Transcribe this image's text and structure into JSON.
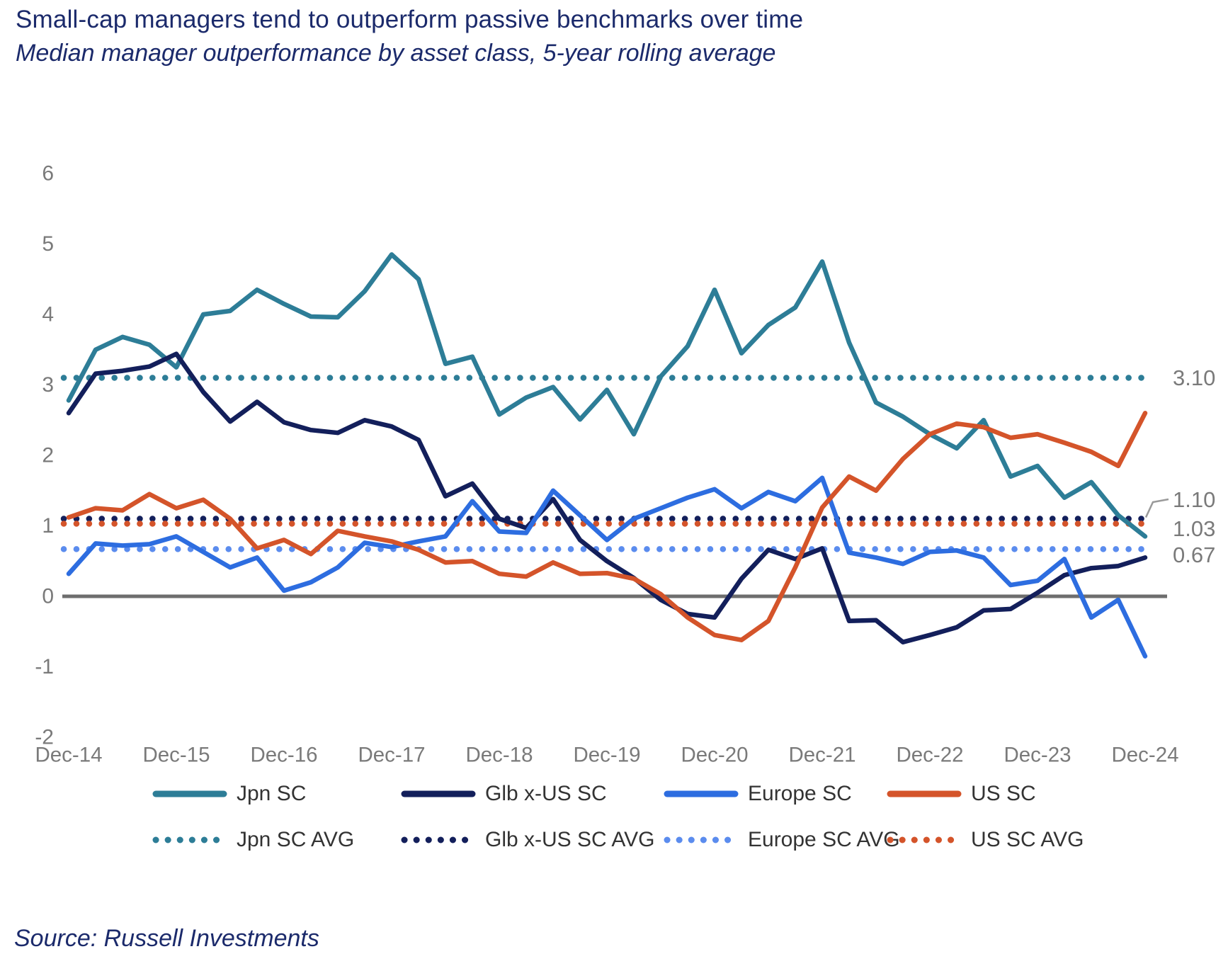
{
  "header": {
    "title": "Small-cap managers tend to outperform passive benchmarks over time",
    "subtitle": "Median manager outperformance by asset class, 5-year rolling average"
  },
  "footer": {
    "source": "Source: Russell Investments"
  },
  "chart_data": {
    "type": "line",
    "title": "Median manager outperformance by asset class, 5-year rolling average",
    "x_frequency": "quarterly",
    "x_tick_labels": [
      "Dec-14",
      "Dec-15",
      "Dec-16",
      "Dec-17",
      "Dec-18",
      "Dec-19",
      "Dec-20",
      "Dec-21",
      "Dec-22",
      "Dec-23",
      "Dec-24"
    ],
    "y_ticks": [
      6,
      5,
      4,
      3,
      2,
      1,
      0,
      -1,
      -2
    ],
    "ylim": [
      -2,
      6
    ],
    "grid": "none",
    "zero_line_color": "#6e6e6e",
    "axis_text_color": "#7a7a7a",
    "series": [
      {
        "name": "Jpn SC",
        "color": "#2d7d97",
        "values": [
          2.78,
          3.5,
          3.68,
          3.57,
          3.25,
          4.0,
          4.05,
          4.35,
          4.15,
          3.97,
          3.96,
          4.33,
          4.85,
          4.5,
          3.3,
          3.4,
          2.58,
          2.82,
          2.97,
          2.51,
          2.93,
          2.3,
          3.12,
          3.55,
          4.35,
          3.45,
          3.85,
          4.1,
          4.75,
          3.6,
          2.75,
          2.55,
          2.3,
          2.1,
          2.5,
          1.7,
          1.85,
          1.4,
          1.62,
          1.15,
          0.85
        ]
      },
      {
        "name": "Glb x-US SC",
        "color": "#131f5b",
        "values": [
          2.6,
          3.16,
          3.2,
          3.26,
          3.44,
          2.9,
          2.48,
          2.76,
          2.47,
          2.36,
          2.32,
          2.5,
          2.41,
          2.22,
          1.42,
          1.6,
          1.1,
          0.97,
          1.38,
          0.8,
          0.5,
          0.26,
          -0.05,
          -0.25,
          -0.3,
          0.25,
          0.66,
          0.53,
          0.68,
          -0.35,
          -0.34,
          -0.65,
          -0.55,
          -0.44,
          -0.2,
          -0.18,
          0.05,
          0.3,
          0.4,
          0.43,
          0.55
        ]
      },
      {
        "name": "Europe SC",
        "color": "#2d6de0",
        "values": [
          0.32,
          0.75,
          0.72,
          0.74,
          0.85,
          0.63,
          0.41,
          0.55,
          0.08,
          0.2,
          0.41,
          0.76,
          0.7,
          0.78,
          0.85,
          1.35,
          0.92,
          0.9,
          1.5,
          1.15,
          0.8,
          1.1,
          1.25,
          1.4,
          1.52,
          1.25,
          1.48,
          1.35,
          1.68,
          0.62,
          0.55,
          0.46,
          0.63,
          0.65,
          0.55,
          0.16,
          0.22,
          0.53,
          -0.3,
          -0.05,
          -0.85
        ]
      },
      {
        "name": "US SC",
        "color": "#d4542a",
        "values": [
          1.12,
          1.25,
          1.22,
          1.45,
          1.25,
          1.37,
          1.1,
          0.68,
          0.8,
          0.6,
          0.93,
          0.85,
          0.78,
          0.66,
          0.48,
          0.5,
          0.32,
          0.28,
          0.48,
          0.32,
          0.33,
          0.25,
          0.03,
          -0.3,
          -0.55,
          -0.62,
          -0.35,
          0.41,
          1.26,
          1.7,
          1.5,
          1.95,
          2.3,
          2.45,
          2.4,
          2.25,
          2.3,
          2.18,
          2.05,
          1.85,
          2.6
        ]
      }
    ],
    "averages": [
      {
        "name": "Jpn SC AVG",
        "color": "#2d7d97",
        "value": 3.1,
        "label": "3.10"
      },
      {
        "name": "Glb x-US SC AVG",
        "color": "#131f5b",
        "value": 1.1,
        "label": "1.10"
      },
      {
        "name": "Europe SC AVG",
        "color": "#5b8cee",
        "value": 0.67,
        "label": "0.67"
      },
      {
        "name": "US SC AVG",
        "color": "#d4542a",
        "value": 1.03,
        "label": "1.03"
      }
    ],
    "right_value_labels": [
      "3.10",
      "1.10",
      "1.03",
      "0.67"
    ],
    "legend_position": "bottom"
  }
}
